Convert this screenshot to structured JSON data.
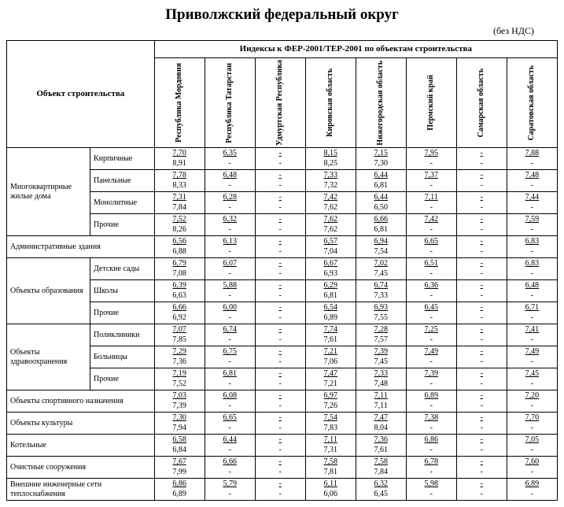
{
  "title": "Приволжский федеральный округ",
  "subtitle": "(без НДС)",
  "header_object": "Объект строительства",
  "header_indexes": "Индексы к ФЕР-2001/ТЕР-2001 по объектам строительства",
  "regions": [
    "Республика Мордовия",
    "Республика Татарстан",
    "Удмуртская Республика",
    "Кировская область",
    "Нижегородская область",
    "Пермский край",
    "Самарская область",
    "Саратовская область"
  ],
  "groups": [
    {
      "group": "Многоквартирные жилые дома",
      "rows": [
        {
          "sub": "Кирпичные",
          "v": [
            [
              "7,70",
              "8,91"
            ],
            [
              "6,35",
              "-"
            ],
            [
              "-",
              "-"
            ],
            [
              "8,15",
              "8,25"
            ],
            [
              "7,15",
              "7,30"
            ],
            [
              "7,95",
              "-"
            ],
            [
              "-",
              "-"
            ],
            [
              "7,88",
              "-"
            ]
          ]
        },
        {
          "sub": "Панельные",
          "v": [
            [
              "7,78",
              "8,33"
            ],
            [
              "6,48",
              "-"
            ],
            [
              "-",
              "-"
            ],
            [
              "7,33",
              "7,32"
            ],
            [
              "6,44",
              "6,81"
            ],
            [
              "7,37",
              "-"
            ],
            [
              "-",
              "-"
            ],
            [
              "7,48",
              "-"
            ]
          ]
        },
        {
          "sub": "Монолитные",
          "v": [
            [
              "7,31",
              "7,84"
            ],
            [
              "6,28",
              "-"
            ],
            [
              "-",
              "-"
            ],
            [
              "7,42",
              "7,62"
            ],
            [
              "6,44",
              "6,50"
            ],
            [
              "7,11",
              "-"
            ],
            [
              "-",
              "-"
            ],
            [
              "7,44",
              "-"
            ]
          ]
        },
        {
          "sub": "Прочие",
          "v": [
            [
              "7,52",
              "8,26"
            ],
            [
              "6,32",
              "-"
            ],
            [
              "-",
              "-"
            ],
            [
              "7,62",
              "7,62"
            ],
            [
              "6,66",
              "6,81"
            ],
            [
              "7,42",
              "-"
            ],
            [
              "-",
              "-"
            ],
            [
              "7,59",
              "-"
            ]
          ]
        }
      ]
    },
    {
      "group": "Административные здания",
      "span": 2,
      "rows": [
        {
          "sub": null,
          "v": [
            [
              "6,56",
              "6,88"
            ],
            [
              "6,13",
              "-"
            ],
            [
              "-",
              "-"
            ],
            [
              "6,57",
              "7,04"
            ],
            [
              "6,94",
              "7,54"
            ],
            [
              "6,65",
              "-"
            ],
            [
              "-",
              "-"
            ],
            [
              "6,83",
              "-"
            ]
          ]
        }
      ]
    },
    {
      "group": "Объекты образования",
      "rows": [
        {
          "sub": "Детские сады",
          "v": [
            [
              "6,79",
              "7,08"
            ],
            [
              "6,07",
              "-"
            ],
            [
              "-",
              "-"
            ],
            [
              "6,67",
              "6,93"
            ],
            [
              "7,02",
              "7,45"
            ],
            [
              "6,51",
              "-"
            ],
            [
              "-",
              "-"
            ],
            [
              "6,83",
              "-"
            ]
          ]
        },
        {
          "sub": "Школы",
          "v": [
            [
              "6,39",
              "6,63"
            ],
            [
              "5,88",
              "-"
            ],
            [
              "-",
              "-"
            ],
            [
              "6,29",
              "6,81"
            ],
            [
              "6,74",
              "7,33"
            ],
            [
              "6,36",
              "-"
            ],
            [
              "-",
              "-"
            ],
            [
              "6,48",
              "-"
            ]
          ]
        },
        {
          "sub": "Прочие",
          "v": [
            [
              "6,66",
              "6,92"
            ],
            [
              "6,00",
              "-"
            ],
            [
              "-",
              "-"
            ],
            [
              "6,54",
              "6,89"
            ],
            [
              "6,93",
              "7,55"
            ],
            [
              "6,45",
              "-"
            ],
            [
              "-",
              "-"
            ],
            [
              "6,71",
              "-"
            ]
          ]
        }
      ]
    },
    {
      "group": "Объекты здравоохранения",
      "rows": [
        {
          "sub": "Поликлиники",
          "v": [
            [
              "7,07",
              "7,85"
            ],
            [
              "6,74",
              "-"
            ],
            [
              "-",
              "-"
            ],
            [
              "7,74",
              "7,61"
            ],
            [
              "7,28",
              "7,57"
            ],
            [
              "7,25",
              "-"
            ],
            [
              "-",
              "-"
            ],
            [
              "7,41",
              "-"
            ]
          ]
        },
        {
          "sub": "Больницы",
          "v": [
            [
              "7,29",
              "7,36"
            ],
            [
              "6,75",
              "-"
            ],
            [
              "-",
              "-"
            ],
            [
              "7,21",
              "7,06"
            ],
            [
              "7,39",
              "7,45"
            ],
            [
              "7,49",
              "-"
            ],
            [
              "-",
              "-"
            ],
            [
              "7,49",
              "-"
            ]
          ]
        },
        {
          "sub": "Прочие",
          "v": [
            [
              "7,19",
              "7,52"
            ],
            [
              "6,81",
              "-"
            ],
            [
              "-",
              "-"
            ],
            [
              "7,47",
              "7,21"
            ],
            [
              "7,33",
              "7,48"
            ],
            [
              "7,39",
              "-"
            ],
            [
              "-",
              "-"
            ],
            [
              "7,45",
              "-"
            ]
          ]
        }
      ]
    },
    {
      "group": "Объекты спортивного назначения",
      "span": 2,
      "rows": [
        {
          "sub": null,
          "v": [
            [
              "7,03",
              "7,39"
            ],
            [
              "6,08",
              "-"
            ],
            [
              "-",
              "-"
            ],
            [
              "6,97",
              "7,26"
            ],
            [
              "7,11",
              "7,11"
            ],
            [
              "6,89",
              "-"
            ],
            [
              "-",
              "-"
            ],
            [
              "7,20",
              "-"
            ]
          ]
        }
      ]
    },
    {
      "group": "Объекты культуры",
      "span": 2,
      "rows": [
        {
          "sub": null,
          "v": [
            [
              "7,30",
              "7,94"
            ],
            [
              "6,65",
              "-"
            ],
            [
              "-",
              "-"
            ],
            [
              "7,54",
              "7,83"
            ],
            [
              "7,47",
              "8,04"
            ],
            [
              "7,38",
              "-"
            ],
            [
              "-",
              "-"
            ],
            [
              "7,70",
              "-"
            ]
          ]
        }
      ]
    },
    {
      "group": "Котельные",
      "span": 2,
      "rows": [
        {
          "sub": null,
          "v": [
            [
              "6,58",
              "6,84"
            ],
            [
              "6,44",
              "-"
            ],
            [
              "-",
              "-"
            ],
            [
              "7,11",
              "7,31"
            ],
            [
              "7,36",
              "7,61"
            ],
            [
              "6,86",
              "-"
            ],
            [
              "-",
              "-"
            ],
            [
              "7,05",
              "-"
            ]
          ]
        }
      ]
    },
    {
      "group": "Очистные сооружения",
      "span": 2,
      "rows": [
        {
          "sub": null,
          "v": [
            [
              "7,67",
              "7,99"
            ],
            [
              "6,66",
              "-"
            ],
            [
              "-",
              "-"
            ],
            [
              "7,58",
              "7,81"
            ],
            [
              "7,58",
              "7,84"
            ],
            [
              "6,78",
              "-"
            ],
            [
              "-",
              "-"
            ],
            [
              "7,60",
              "-"
            ]
          ]
        }
      ]
    },
    {
      "group": "Внешние инженерные сети теплоснабжения",
      "span": 2,
      "rows": [
        {
          "sub": null,
          "v": [
            [
              "6,86",
              "6,89"
            ],
            [
              "5,79",
              "-"
            ],
            [
              "-",
              "-"
            ],
            [
              "6,11",
              "6,06"
            ],
            [
              "6,32",
              "6,45"
            ],
            [
              "5,98",
              "-"
            ],
            [
              "-",
              "-"
            ],
            [
              "6,89",
              "-"
            ]
          ]
        }
      ]
    }
  ]
}
